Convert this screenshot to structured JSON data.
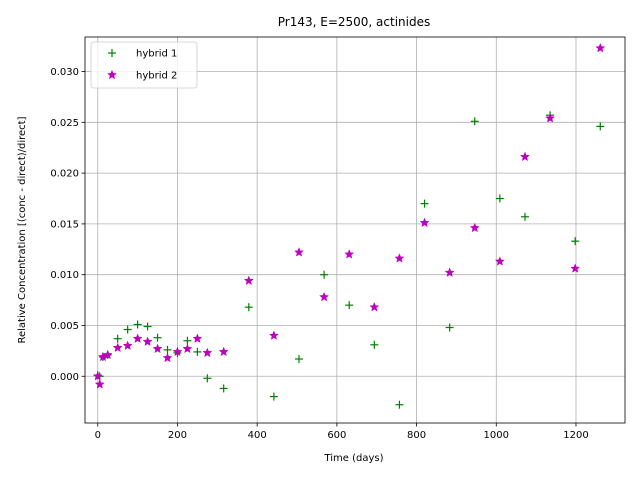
{
  "chart_data": {
    "type": "scatter",
    "title": "Pr143, E=2500, actinides",
    "xlabel": "Time (days)",
    "ylabel": "Relative Concentration [(conc - direct)/direct]",
    "xlim": [
      -32,
      1323
    ],
    "ylim": [
      -0.0046,
      0.0334
    ],
    "xticks": [
      0,
      200,
      400,
      600,
      800,
      1000,
      1200
    ],
    "yticks": [
      0.0,
      0.005,
      0.01,
      0.015,
      0.02,
      0.025,
      0.03
    ],
    "xtick_labels": [
      "0",
      "200",
      "400",
      "600",
      "800",
      "1000",
      "1200"
    ],
    "ytick_labels": [
      "0.000",
      "0.005",
      "0.010",
      "0.015",
      "0.020",
      "0.025",
      "0.030"
    ],
    "grid": true,
    "legend_position": "upper-left",
    "series": [
      {
        "name": "hybrid 1",
        "marker": "plus",
        "color": "#008000",
        "x": [
          0,
          5,
          13,
          25,
          50,
          75,
          100,
          125,
          150,
          175,
          200,
          225,
          250,
          275,
          316,
          379,
          442,
          505,
          568,
          631,
          694,
          757,
          820,
          883,
          946,
          1009,
          1072,
          1135,
          1198,
          1261
        ],
        "y": [
          0.0001,
          0.0,
          0.0019,
          0.0021,
          0.0037,
          0.0046,
          0.0051,
          0.0049,
          0.0038,
          0.0026,
          0.0023,
          0.0035,
          0.0024,
          -0.0002,
          -0.0012,
          0.0068,
          -0.002,
          0.0017,
          0.01,
          0.007,
          0.0031,
          -0.0028,
          0.017,
          0.0048,
          0.0251,
          0.0175,
          0.0157,
          0.0257,
          0.0133,
          0.0246
        ]
      },
      {
        "name": "hybrid 2",
        "marker": "star",
        "color": "#bf00bf",
        "x": [
          0,
          5,
          13,
          25,
          50,
          75,
          100,
          125,
          150,
          175,
          200,
          225,
          250,
          275,
          316,
          379,
          442,
          505,
          568,
          631,
          694,
          757,
          820,
          883,
          946,
          1009,
          1072,
          1135,
          1198,
          1261
        ],
        "y": [
          0.0,
          -0.0008,
          0.0019,
          0.0021,
          0.0028,
          0.003,
          0.0037,
          0.0034,
          0.0027,
          0.0018,
          0.0024,
          0.0027,
          0.0037,
          0.0023,
          0.0024,
          0.0094,
          0.004,
          0.0122,
          0.0078,
          0.012,
          0.0068,
          0.0116,
          0.0151,
          0.0102,
          0.0146,
          0.0113,
          0.0216,
          0.0254,
          0.0106,
          0.0323
        ]
      }
    ]
  }
}
